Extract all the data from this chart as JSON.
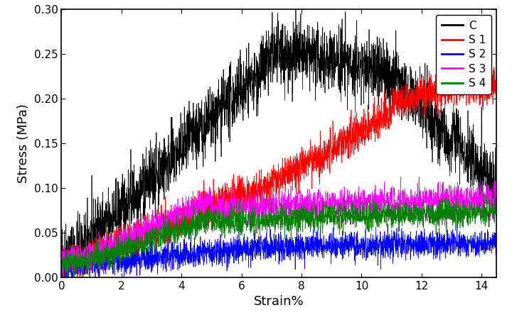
{
  "title": "",
  "xlabel": "Strain%",
  "ylabel": "Stress (MPa)",
  "xlim": [
    0,
    14.5
  ],
  "ylim": [
    0,
    0.3
  ],
  "xticks": [
    0,
    2,
    4,
    6,
    8,
    10,
    12,
    14
  ],
  "yticks": [
    0.0,
    0.05,
    0.1,
    0.15,
    0.2,
    0.25,
    0.3
  ],
  "legend_labels": [
    "C",
    "S 1",
    "S 2",
    "S 3",
    "S 4"
  ],
  "line_colors": [
    "#000000",
    "#ff0000",
    "#0000ff",
    "#ff00ff",
    "#008000"
  ],
  "noise_scale": [
    0.018,
    0.01,
    0.007,
    0.008,
    0.007
  ],
  "background_color": "#ffffff",
  "legend_fontsize": 11,
  "axis_label_fontsize": 13,
  "tick_fontsize": 11
}
